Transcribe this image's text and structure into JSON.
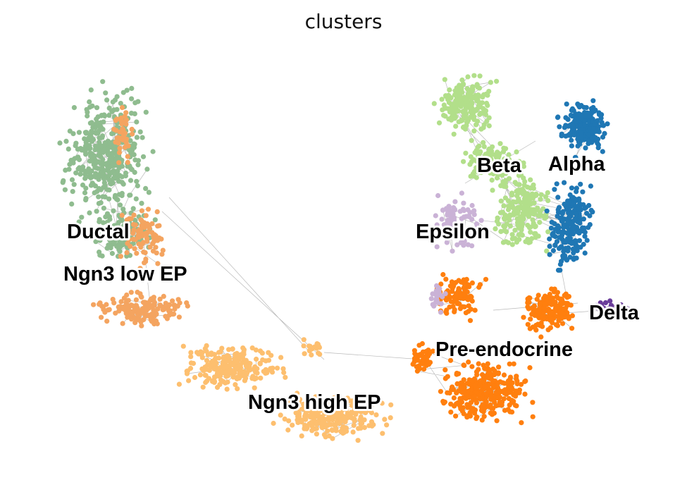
{
  "chart_data": {
    "type": "scatter",
    "title": "clusters",
    "xlabel": "",
    "ylabel": "",
    "frame": false,
    "grid": false,
    "legend": "on data",
    "edge_color": "#808080",
    "series": [
      {
        "name": "Ductal",
        "color": "#8fbc8f"
      },
      {
        "name": "Ngn3 low EP",
        "color": "#f4a460"
      },
      {
        "name": "Ngn3 high EP",
        "color": "#fdbf6f"
      },
      {
        "name": "Pre-endocrine",
        "color": "#ff7f0e"
      },
      {
        "name": "Beta",
        "color": "#b2df8a"
      },
      {
        "name": "Alpha",
        "color": "#1f77b4"
      },
      {
        "name": "Delta",
        "color": "#6a3d9a"
      },
      {
        "name": "Epsilon",
        "color": "#cab2d6"
      }
    ]
  }
}
